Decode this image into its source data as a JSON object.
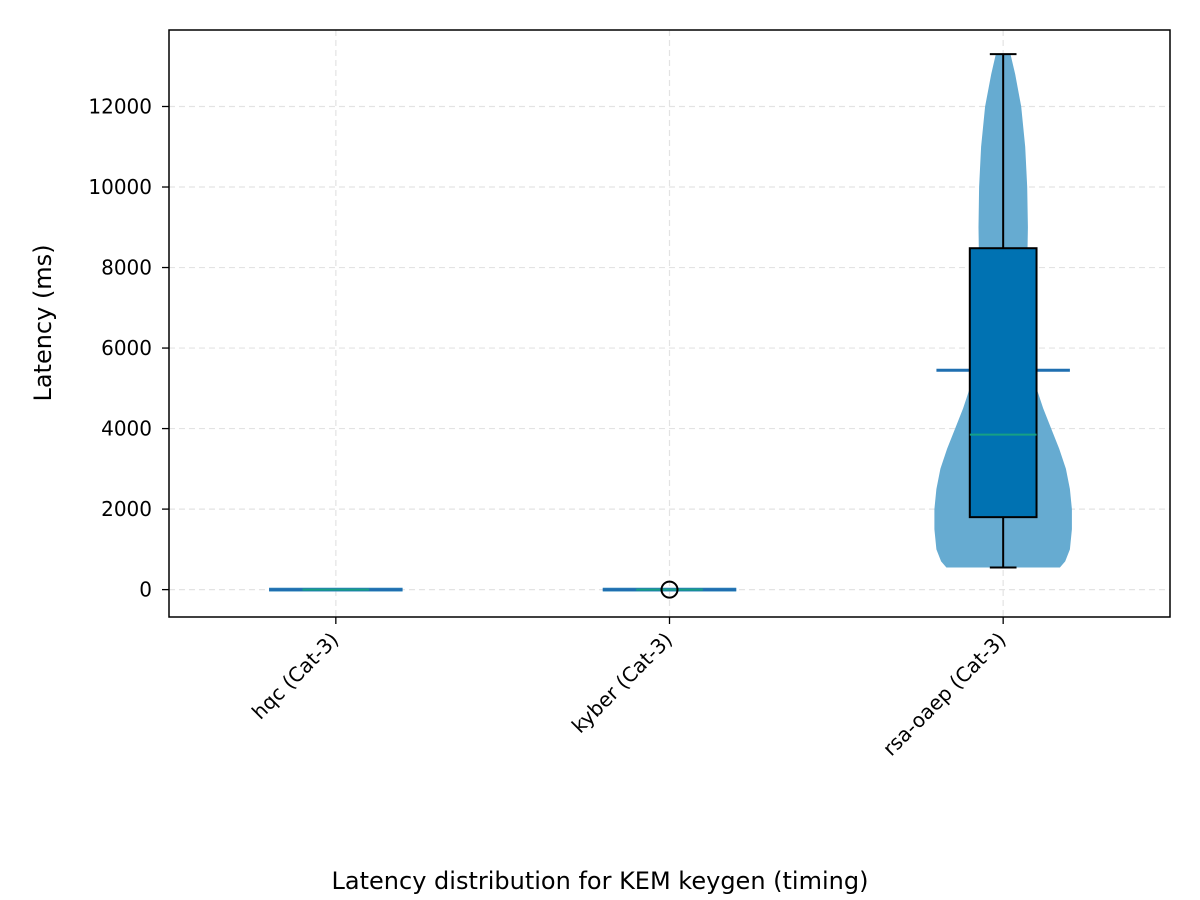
{
  "chart_data": {
    "type": "violin",
    "title": "",
    "caption": "Latency distribution for KEM keygen (timing)",
    "xlabel": "",
    "ylabel": "Latency (ms)",
    "ylim": [
      -680,
      13900
    ],
    "yticks": [
      0,
      2000,
      4000,
      6000,
      8000,
      10000,
      12000
    ],
    "grid": true,
    "categories": [
      "hqc (Cat-3)",
      "kyber (Cat-3)",
      "rsa-oaep (Cat-3)"
    ],
    "distributions": [
      {
        "category": "hqc (Cat-3)",
        "min": 0,
        "q1": 0,
        "median": 0,
        "q3": 0,
        "max": 0,
        "mean": 0,
        "outliers": []
      },
      {
        "category": "kyber (Cat-3)",
        "min": 0,
        "q1": 0,
        "median": 0,
        "q3": 0,
        "max": 0,
        "mean": 0,
        "outliers": [
          0
        ]
      },
      {
        "category": "rsa-oaep (Cat-3)",
        "min": 550,
        "q1": 1800,
        "median": 3850,
        "q3": 8480,
        "max": 13300,
        "mean": 5450,
        "outliers": [],
        "density_profile": [
          [
            550,
            0.85
          ],
          [
            700,
            0.93
          ],
          [
            1000,
            1.0
          ],
          [
            1500,
            1.03
          ],
          [
            2000,
            1.03
          ],
          [
            2500,
            1.0
          ],
          [
            3000,
            0.94
          ],
          [
            3500,
            0.84
          ],
          [
            4000,
            0.72
          ],
          [
            4500,
            0.6
          ],
          [
            5000,
            0.5
          ],
          [
            5500,
            0.44
          ],
          [
            6000,
            0.4
          ],
          [
            6500,
            0.37
          ],
          [
            7000,
            0.36
          ],
          [
            8000,
            0.36
          ],
          [
            9000,
            0.37
          ],
          [
            10000,
            0.36
          ],
          [
            11000,
            0.33
          ],
          [
            12000,
            0.27
          ],
          [
            12800,
            0.18
          ],
          [
            13300,
            0.11
          ]
        ]
      }
    ],
    "colors": {
      "violin_fill": "#66abd1",
      "box_fill": "#0072b2",
      "median_line": "#16a085",
      "mean_line": "#1f6fb0",
      "grid": "#e3e3e3"
    }
  }
}
